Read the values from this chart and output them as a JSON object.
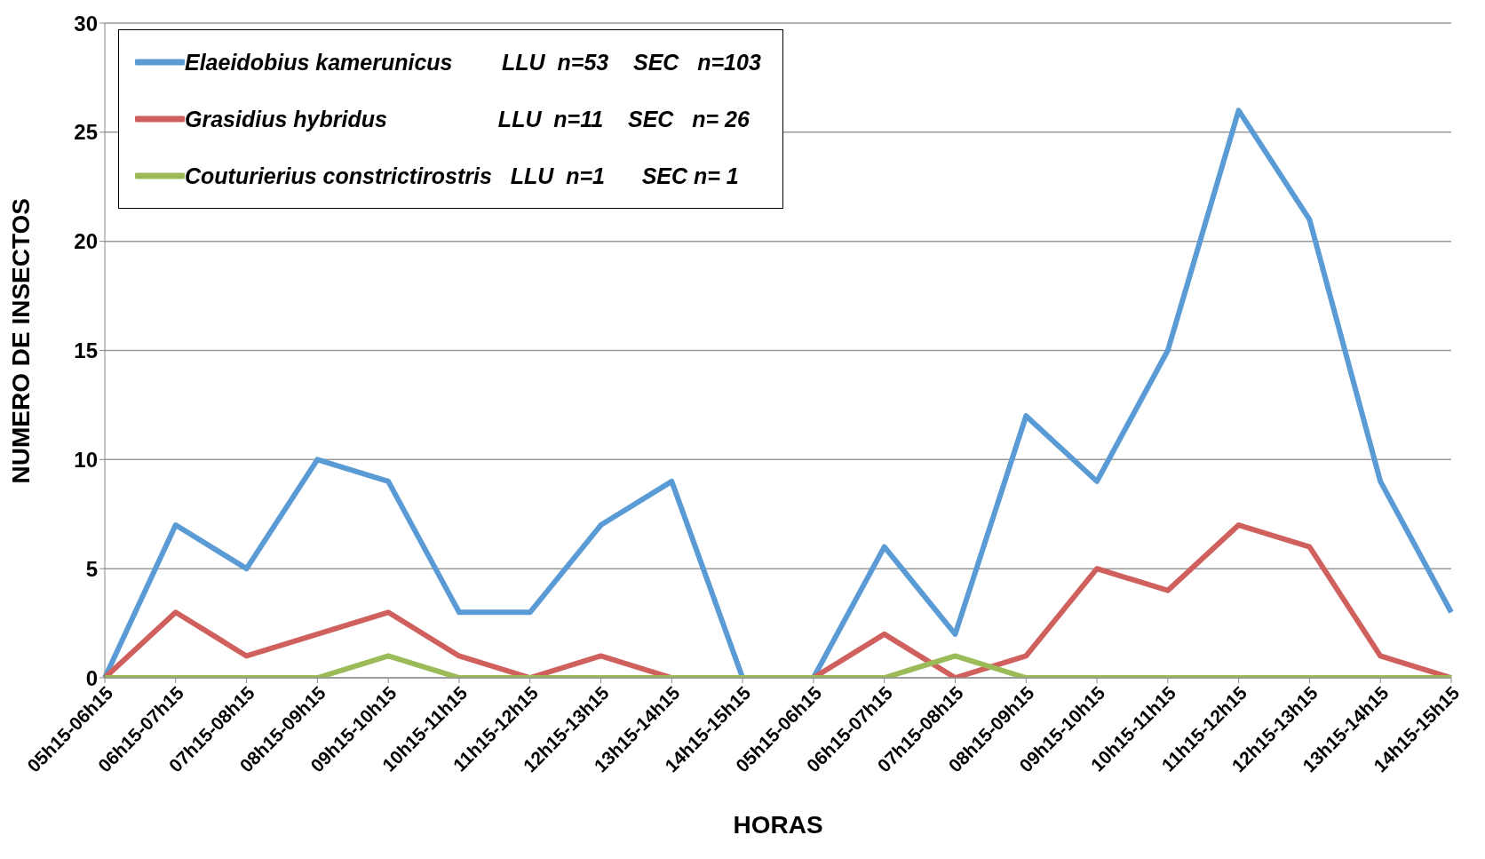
{
  "chart_data": {
    "type": "line",
    "xlabel": "HORAS",
    "ylabel": "NUMERO DE INSECTOS",
    "categories": [
      "05h15-06h15",
      "06h15-07h15",
      "07h15-08h15",
      "08h15-09h15",
      "09h15-10h15",
      "10h15-11h15",
      "11h15-12h15",
      "12h15-13h15",
      "13h15-14h15",
      "14h15-15h15",
      "05h15-06h15",
      "06h15-07h15",
      "07h15-08h15",
      "08h15-09h15",
      "09h15-10h15",
      "10h15-11h15",
      "11h15-12h15",
      "12h15-13h15",
      "13h15-14h15",
      "14h15-15h15"
    ],
    "series": [
      {
        "name": "Elaeidobius kamerunicus        LLU  n=53    SEC   n=103",
        "color": "#5b9bd5",
        "values": [
          0,
          7,
          5,
          10,
          9,
          3,
          3,
          7,
          9,
          0,
          0,
          6,
          2,
          12,
          9,
          15,
          26,
          21,
          9,
          3
        ]
      },
      {
        "name": "Grasidius hybridus                  LLU  n=11    SEC   n= 26",
        "color": "#d0605e",
        "values": [
          0,
          3,
          1,
          2,
          3,
          1,
          0,
          1,
          0,
          0,
          0,
          2,
          0,
          1,
          5,
          4,
          7,
          6,
          1,
          0
        ]
      },
      {
        "name": "Couturierius constrictirostris   LLU  n=1      SEC n= 1",
        "color": "#9bbb59",
        "values": [
          0,
          0,
          0,
          0,
          1,
          0,
          0,
          0,
          0,
          0,
          0,
          0,
          1,
          0,
          0,
          0,
          0,
          0,
          0,
          0
        ]
      }
    ],
    "ylim": [
      0,
      30
    ],
    "yticks": [
      0,
      5,
      10,
      15,
      20,
      25,
      30
    ],
    "grid": "y",
    "legend": "top left",
    "marker": "none",
    "line_style": "solid"
  }
}
